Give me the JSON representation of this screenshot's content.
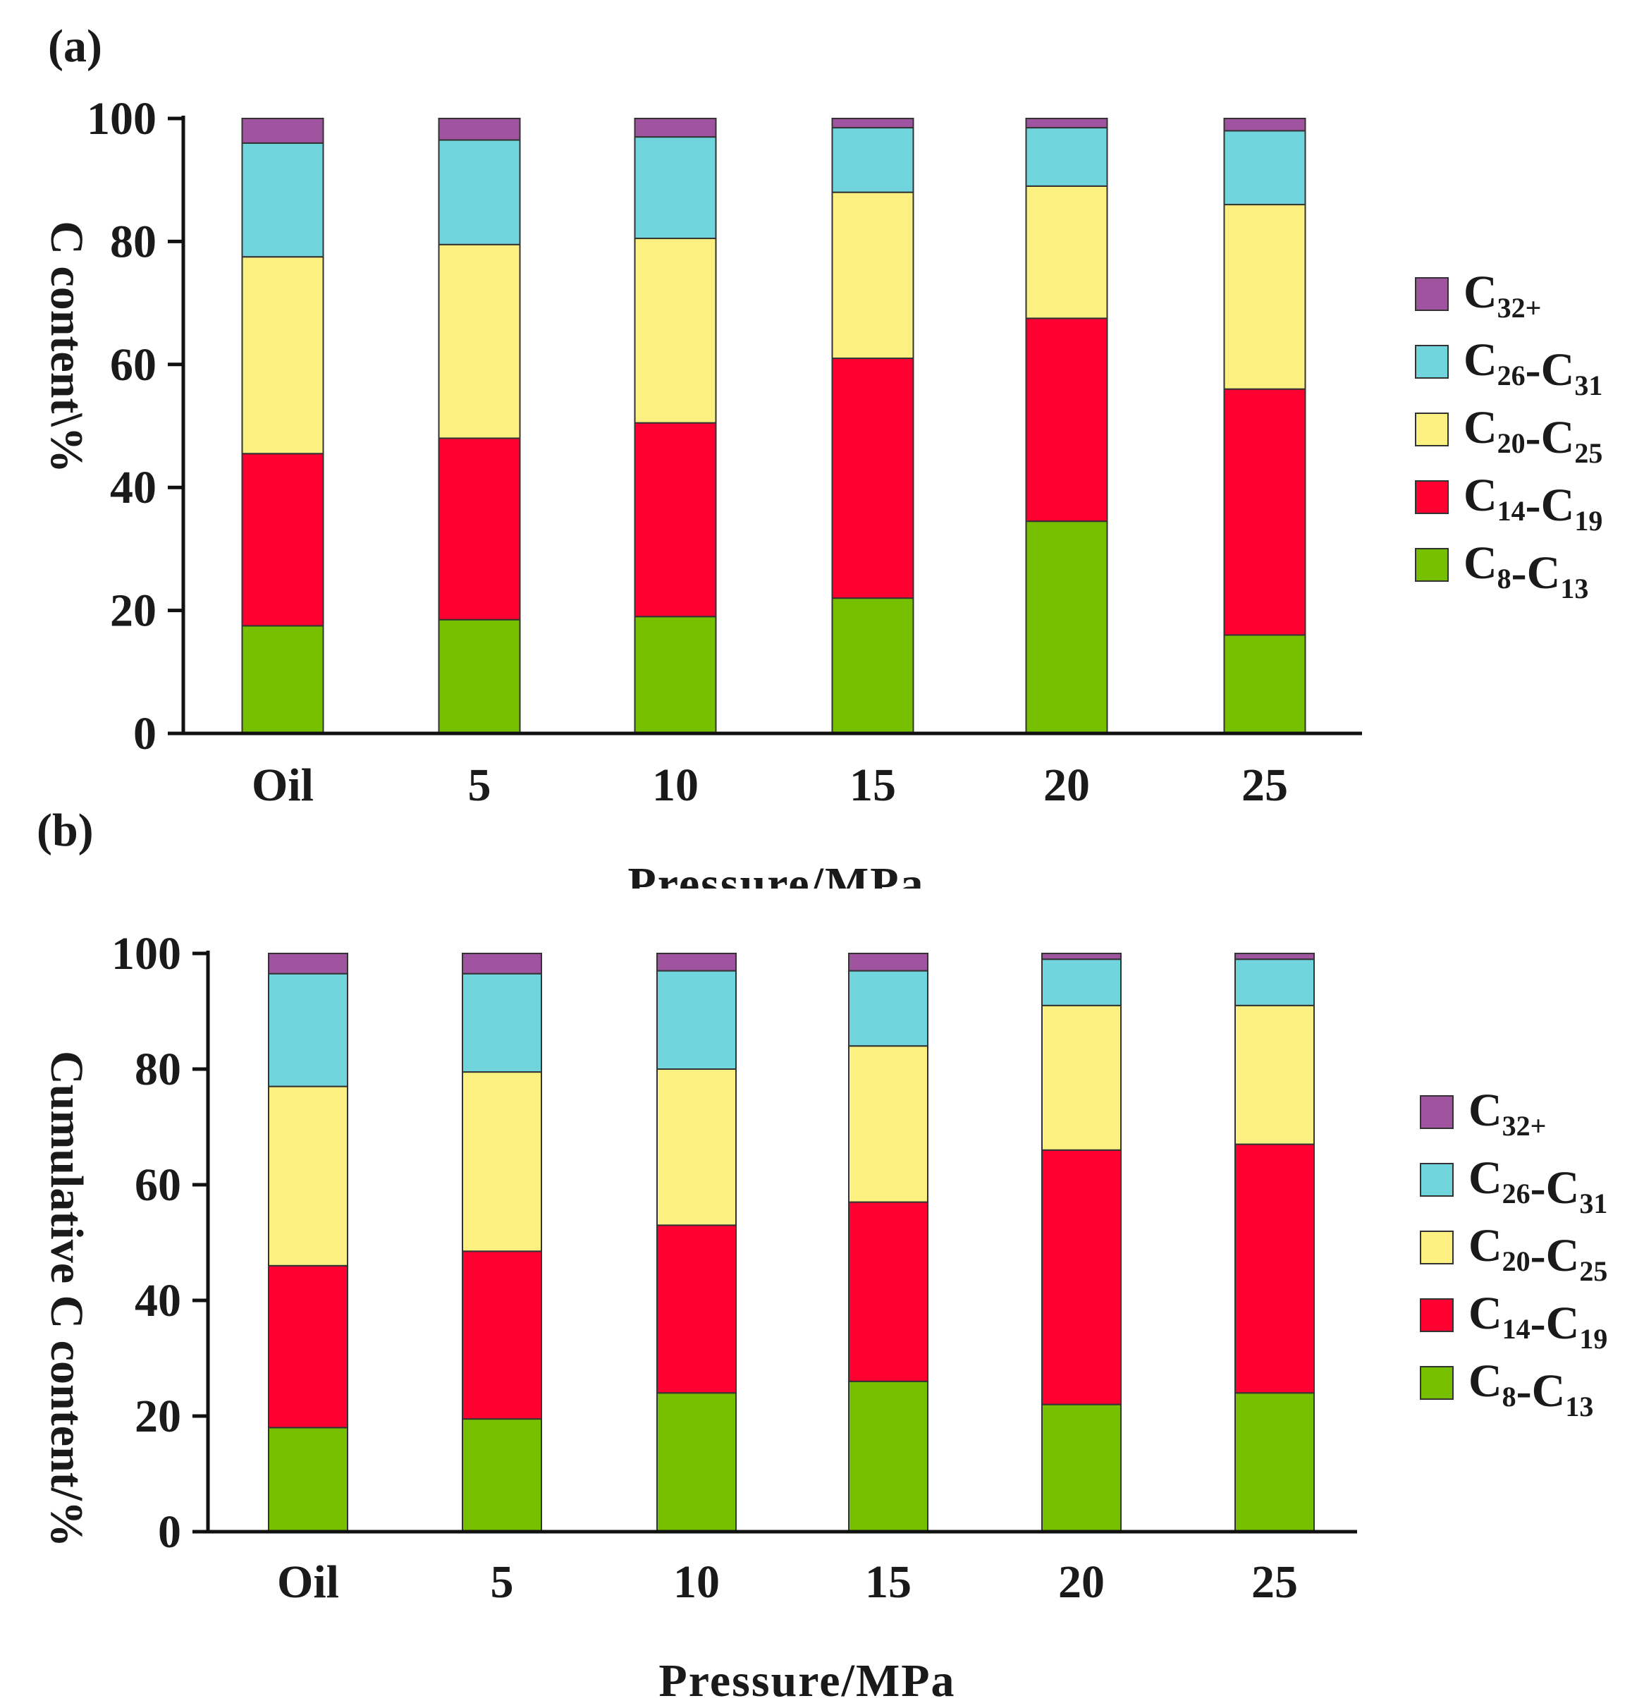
{
  "legend": {
    "series": [
      {
        "key": "C8_C13",
        "color": "#76c000",
        "parts": [
          [
            "C",
            "base"
          ],
          [
            "8",
            "sub"
          ],
          [
            "-C",
            "base"
          ],
          [
            "13",
            "sub"
          ]
        ]
      },
      {
        "key": "C14_C19",
        "color": "#ff0030",
        "parts": [
          [
            "C",
            "base"
          ],
          [
            "14",
            "sub"
          ],
          [
            "-C",
            "base"
          ],
          [
            "19",
            "sub"
          ]
        ]
      },
      {
        "key": "C20_C25",
        "color": "#fbf080",
        "parts": [
          [
            "C",
            "base"
          ],
          [
            "20",
            "sub"
          ],
          [
            "-C",
            "base"
          ],
          [
            "25",
            "sub"
          ]
        ]
      },
      {
        "key": "C26_C31",
        "color": "#70d5dd",
        "parts": [
          [
            "C",
            "base"
          ],
          [
            "26",
            "sub"
          ],
          [
            "-C",
            "base"
          ],
          [
            "31",
            "sub"
          ]
        ]
      },
      {
        "key": "C32plus",
        "color": "#a054a0",
        "parts": [
          [
            "C",
            "base"
          ],
          [
            "32+",
            "sub"
          ]
        ]
      }
    ]
  },
  "chart_data": [
    {
      "type": "bar",
      "stacked": true,
      "panel_label": "(a)",
      "title": "",
      "xlabel": "Pressure/MPa",
      "ylabel": "C content\\%",
      "ylim": [
        0,
        100
      ],
      "yticks": [
        0,
        20,
        40,
        60,
        80,
        100
      ],
      "categories": [
        "Oil",
        "5",
        "10",
        "15",
        "20",
        "25"
      ],
      "series": [
        {
          "name": "C8-C13",
          "values": [
            17.5,
            18.5,
            19.0,
            22.0,
            34.5,
            16.0
          ]
        },
        {
          "name": "C14-C19",
          "values": [
            28.0,
            29.5,
            31.5,
            39.0,
            33.0,
            40.0
          ]
        },
        {
          "name": "C20-C25",
          "values": [
            32.0,
            31.5,
            30.0,
            27.0,
            21.5,
            30.0
          ]
        },
        {
          "name": "C26-C31",
          "values": [
            18.5,
            17.0,
            16.5,
            10.5,
            9.5,
            12.0
          ]
        },
        {
          "name": "C32+",
          "values": [
            4.0,
            3.5,
            3.0,
            1.5,
            1.5,
            2.0
          ]
        }
      ],
      "legend_position": "right"
    },
    {
      "type": "bar",
      "stacked": true,
      "panel_label": "(b)",
      "title": "",
      "xlabel": "Pressure/MPa",
      "ylabel": "Cumulative C content/%",
      "ylim": [
        0,
        100
      ],
      "yticks": [
        0,
        20,
        40,
        60,
        80,
        100
      ],
      "categories": [
        "Oil",
        "5",
        "10",
        "15",
        "20",
        "25"
      ],
      "series": [
        {
          "name": "C8-C13",
          "values": [
            18.0,
            19.5,
            24.0,
            26.0,
            22.0,
            24.0
          ]
        },
        {
          "name": "C14-C19",
          "values": [
            28.0,
            29.0,
            29.0,
            31.0,
            44.0,
            43.0
          ]
        },
        {
          "name": "C20-C25",
          "values": [
            31.0,
            31.0,
            27.0,
            27.0,
            25.0,
            24.0
          ]
        },
        {
          "name": "C26-C31",
          "values": [
            19.5,
            17.0,
            17.0,
            13.0,
            8.0,
            8.0
          ]
        },
        {
          "name": "C32+",
          "values": [
            3.5,
            3.5,
            3.0,
            3.0,
            1.0,
            1.0
          ]
        }
      ],
      "legend_position": "right"
    }
  ]
}
